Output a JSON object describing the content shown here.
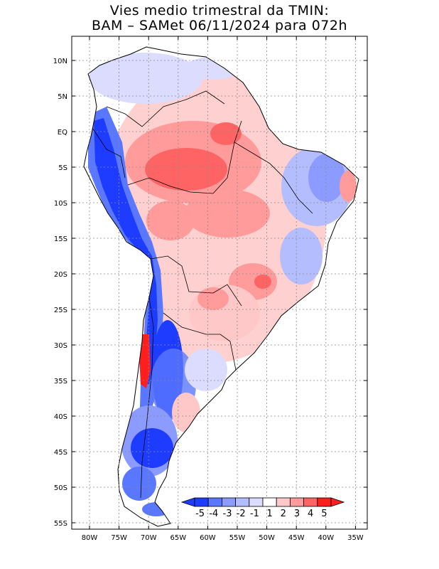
{
  "title": {
    "line1": "Vies medio trimestral da TMIN:",
    "line2": "BAM – SAMet 06/11/2024  para 072h"
  },
  "axes": {
    "lat_labels": [
      "10N",
      "5N",
      "EQ",
      "5S",
      "10S",
      "15S",
      "20S",
      "25S",
      "30S",
      "35S",
      "40S",
      "45S",
      "50S",
      "55S"
    ],
    "lon_labels": [
      "80W",
      "75W",
      "70W",
      "65W",
      "60W",
      "55W",
      "50W",
      "45W",
      "40W",
      "35W"
    ],
    "grid": "dotted"
  },
  "colorbar": {
    "labels": [
      "-5",
      "-4",
      "-3",
      "-2",
      "-1",
      "1",
      "2",
      "3",
      "4",
      "5"
    ],
    "colors": [
      "#1e3cff",
      "#5a78ff",
      "#8c9bff",
      "#b4beff",
      "#dcdcff",
      "#ffffff",
      "#ffc8c8",
      "#ff9b9b",
      "#ff6464",
      "#ff1e1e"
    ]
  },
  "colors": {
    "strong_blue": "#1e3cff",
    "blue": "#5a78ff",
    "light_blue": "#b4beff",
    "pale_blue": "#dcdcff",
    "pale_red": "#ffc8c8",
    "red": "#ff9b9b",
    "strong_red": "#ff6464",
    "deep_red": "#ff1e1e"
  }
}
